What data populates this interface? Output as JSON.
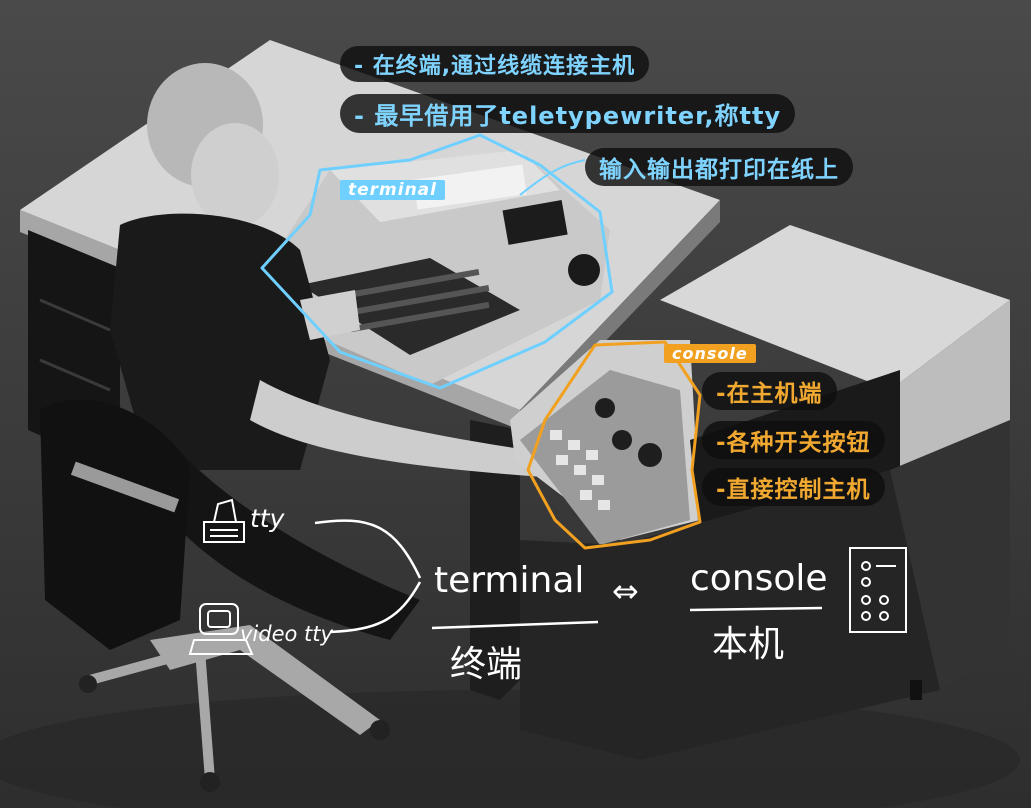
{
  "annotations": {
    "terminal_tag": "terminal",
    "terminal_notes": [
      "- 在终端,通过线缆连接主机",
      "- 最早借用了teletypewriter,称tty",
      "输入输出都打印在纸上"
    ],
    "console_tag": "console",
    "console_notes": [
      "-在主机端",
      "-各种开关按钮",
      "-直接控制主机"
    ]
  },
  "diagram": {
    "tty_label": "tty",
    "videotty_label": "video tty",
    "terminal_en": "terminal",
    "arrow": "⇔",
    "console_en": "console",
    "terminal_zh": "终端",
    "console_zh": "本机"
  },
  "colors": {
    "terminal_accent": "#6fd0ff",
    "console_accent": "#f2a020",
    "handwriting": "#ffffff"
  }
}
